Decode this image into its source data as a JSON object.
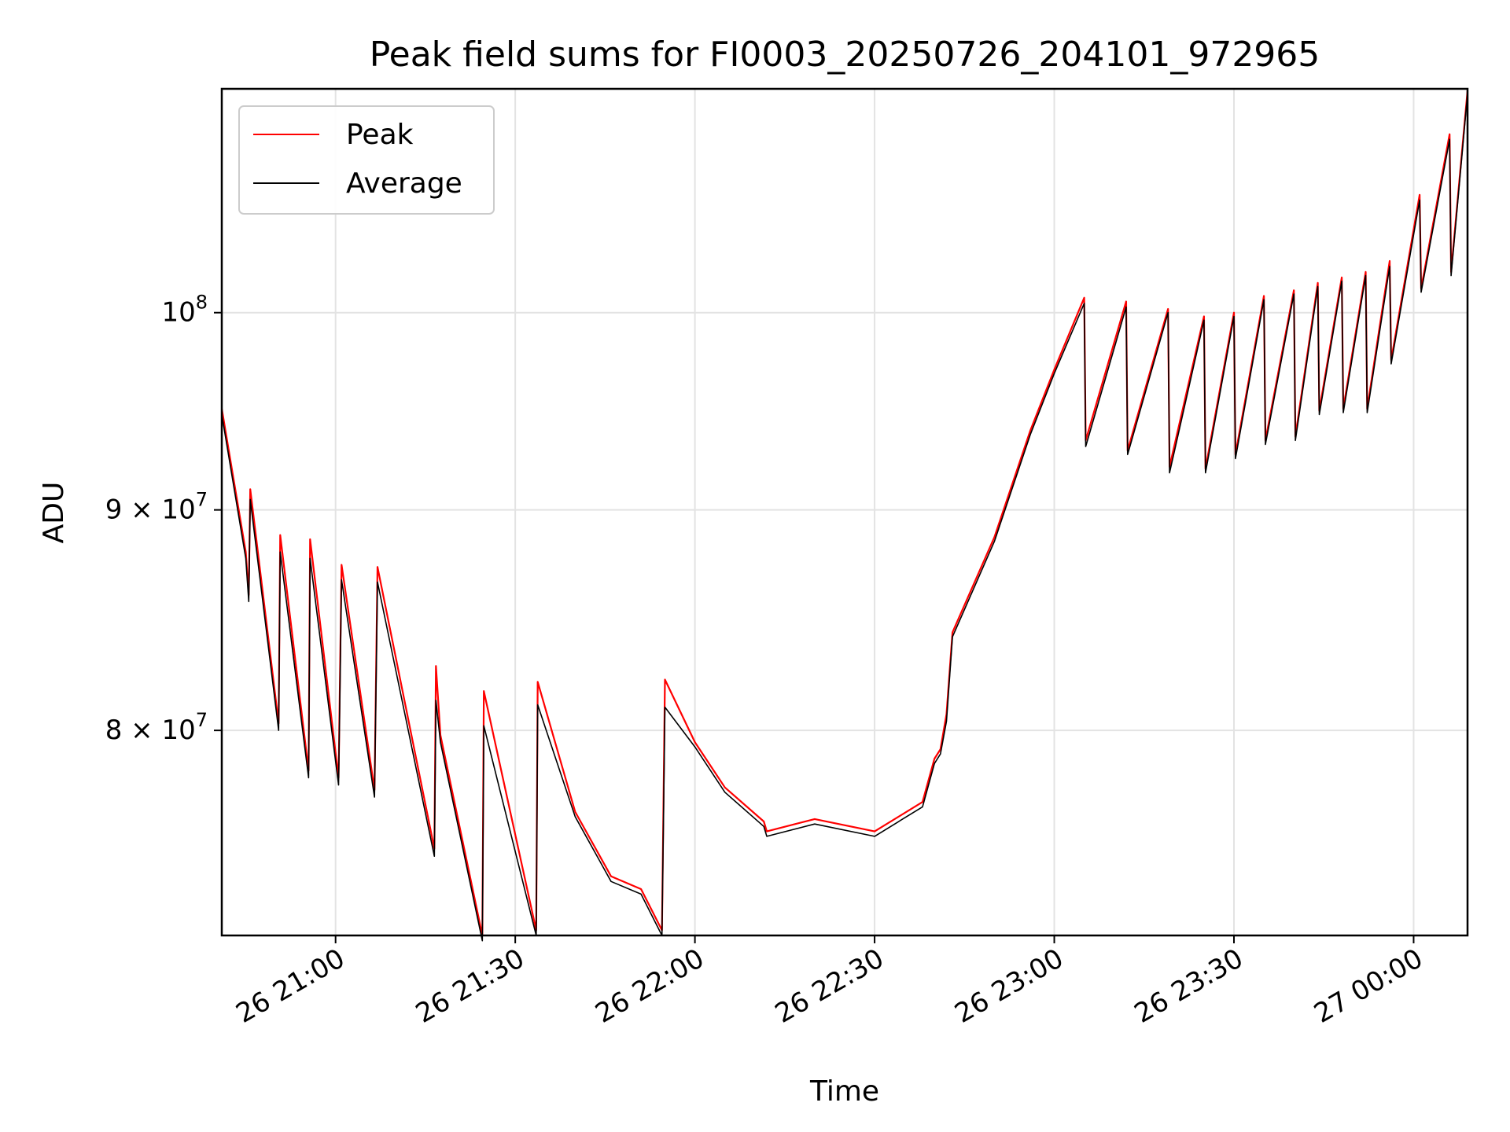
{
  "chart_data": {
    "type": "line",
    "title": "Peak field sums for FI0003_20250726_204101_972965",
    "xlabel": "Time",
    "ylabel": "ADU",
    "x_tick_labels": [
      "26 21:00",
      "26 21:30",
      "26 22:00",
      "26 22:30",
      "26 23:00",
      "26 23:30",
      "27 00:00"
    ],
    "y_tick_labels": [
      {
        "value": 80000000,
        "mantissa": "8",
        "times": "×",
        "base": "10",
        "exponent": "7"
      },
      {
        "value": 90000000,
        "mantissa": "9",
        "times": "×",
        "base": "10",
        "exponent": "7"
      },
      {
        "value": 100000000,
        "mantissa": "",
        "times": "",
        "base": "10",
        "exponent": "8"
      }
    ],
    "x_scale": "time",
    "y_scale": "log",
    "xlim": [
      "2025-07-26 20:41",
      "2025-07-27 00:09"
    ],
    "ylim": [
      71700000,
      112700000
    ],
    "grid": true,
    "legend_position": "top-left",
    "series": [
      {
        "name": "Peak",
        "color": "#ff0000",
        "points": [
          [
            "2025-07-26 20:41",
            95000000
          ],
          [
            "2025-07-26 20:45",
            88000000
          ],
          [
            "2025-07-26 20:45:30",
            86000000
          ],
          [
            "2025-07-26 20:45:45",
            91000000
          ],
          [
            "2025-07-26 20:50:30",
            80300000
          ],
          [
            "2025-07-26 20:50:45",
            88800000
          ],
          [
            "2025-07-26 20:55:30",
            78300000
          ],
          [
            "2025-07-26 20:55:45",
            88600000
          ],
          [
            "2025-07-26 21:00:30",
            78000000
          ],
          [
            "2025-07-26 21:01",
            87400000
          ],
          [
            "2025-07-26 21:06:30",
            77500000
          ],
          [
            "2025-07-26 21:07",
            87300000
          ],
          [
            "2025-07-26 21:16:30",
            75100000
          ],
          [
            "2025-07-26 21:16:45",
            82800000
          ],
          [
            "2025-07-26 21:17:30",
            79800000
          ],
          [
            "2025-07-26 21:24:30",
            71700000
          ],
          [
            "2025-07-26 21:24:45",
            81700000
          ],
          [
            "2025-07-26 21:33:30",
            71900000
          ],
          [
            "2025-07-26 21:33:45",
            82100000
          ],
          [
            "2025-07-26 21:40",
            76600000
          ],
          [
            "2025-07-26 21:46",
            74000000
          ],
          [
            "2025-07-26 21:51",
            73500000
          ],
          [
            "2025-07-26 21:54:30",
            71900000
          ],
          [
            "2025-07-26 21:55",
            82200000
          ],
          [
            "2025-07-26 22:00",
            79500000
          ],
          [
            "2025-07-26 22:05",
            77600000
          ],
          [
            "2025-07-26 22:11:30",
            76200000
          ],
          [
            "2025-07-26 22:12",
            75800000
          ],
          [
            "2025-07-26 22:20",
            76300000
          ],
          [
            "2025-07-26 22:30",
            75800000
          ],
          [
            "2025-07-26 22:38",
            77000000
          ],
          [
            "2025-07-26 22:40",
            78800000
          ],
          [
            "2025-07-26 22:41",
            79200000
          ],
          [
            "2025-07-26 22:42",
            80700000
          ],
          [
            "2025-07-26 22:43",
            84300000
          ],
          [
            "2025-07-26 22:50",
            88700000
          ],
          [
            "2025-07-26 22:56",
            93900000
          ],
          [
            "2025-07-26 23:00",
            97000000
          ],
          [
            "2025-07-26 23:05",
            100800000
          ],
          [
            "2025-07-26 23:05:15",
            93400000
          ],
          [
            "2025-07-26 23:12",
            100600000
          ],
          [
            "2025-07-26 23:12:15",
            92900000
          ],
          [
            "2025-07-26 23:19",
            100200000
          ],
          [
            "2025-07-26 23:19:15",
            92100000
          ],
          [
            "2025-07-26 23:25",
            99800000
          ],
          [
            "2025-07-26 23:25:15",
            92000000
          ],
          [
            "2025-07-26 23:30",
            100000000
          ],
          [
            "2025-07-26 23:30:15",
            92700000
          ],
          [
            "2025-07-26 23:35",
            100900000
          ],
          [
            "2025-07-26 23:35:15",
            93400000
          ],
          [
            "2025-07-26 23:40",
            101200000
          ],
          [
            "2025-07-26 23:40:15",
            93600000
          ],
          [
            "2025-07-26 23:44",
            101600000
          ],
          [
            "2025-07-26 23:44:15",
            94900000
          ],
          [
            "2025-07-26 23:48",
            101900000
          ],
          [
            "2025-07-26 23:48:15",
            95000000
          ],
          [
            "2025-07-26 23:52",
            102200000
          ],
          [
            "2025-07-26 23:52:15",
            95000000
          ],
          [
            "2025-07-26 23:56",
            102800000
          ],
          [
            "2025-07-26 23:56:15",
            97500000
          ],
          [
            "2025-07-27 00:01",
            106500000
          ],
          [
            "2025-07-27 00:01:15",
            101300000
          ],
          [
            "2025-07-27 00:06",
            110000000
          ],
          [
            "2025-07-27 00:06:15",
            102200000
          ],
          [
            "2025-07-27 00:09",
            112600000
          ]
        ]
      },
      {
        "name": "Average",
        "color": "#000000",
        "points": [
          [
            "2025-07-26 20:41",
            94700000
          ],
          [
            "2025-07-26 20:45",
            87700000
          ],
          [
            "2025-07-26 20:45:30",
            85700000
          ],
          [
            "2025-07-26 20:45:45",
            90500000
          ],
          [
            "2025-07-26 20:50:30",
            80000000
          ],
          [
            "2025-07-26 20:50:45",
            88000000
          ],
          [
            "2025-07-26 20:55:30",
            78000000
          ],
          [
            "2025-07-26 20:55:45",
            87700000
          ],
          [
            "2025-07-26 21:00:30",
            77700000
          ],
          [
            "2025-07-26 21:01",
            86700000
          ],
          [
            "2025-07-26 21:06:30",
            77200000
          ],
          [
            "2025-07-26 21:07",
            86600000
          ],
          [
            "2025-07-26 21:16:30",
            74800000
          ],
          [
            "2025-07-26 21:16:45",
            81300000
          ],
          [
            "2025-07-26 21:17:30",
            79500000
          ],
          [
            "2025-07-26 21:24:30",
            71500000
          ],
          [
            "2025-07-26 21:24:45",
            80200000
          ],
          [
            "2025-07-26 21:33:30",
            71700000
          ],
          [
            "2025-07-26 21:33:45",
            81100000
          ],
          [
            "2025-07-26 21:40",
            76400000
          ],
          [
            "2025-07-26 21:46",
            73800000
          ],
          [
            "2025-07-26 21:51",
            73300000
          ],
          [
            "2025-07-26 21:54:30",
            71700000
          ],
          [
            "2025-07-26 21:55",
            81000000
          ],
          [
            "2025-07-26 22:00",
            79300000
          ],
          [
            "2025-07-26 22:05",
            77400000
          ],
          [
            "2025-07-26 22:11:30",
            76000000
          ],
          [
            "2025-07-26 22:12",
            75600000
          ],
          [
            "2025-07-26 22:20",
            76100000
          ],
          [
            "2025-07-26 22:30",
            75600000
          ],
          [
            "2025-07-26 22:38",
            76800000
          ],
          [
            "2025-07-26 22:40",
            78600000
          ],
          [
            "2025-07-26 22:41",
            79000000
          ],
          [
            "2025-07-26 22:42",
            80400000
          ],
          [
            "2025-07-26 22:43",
            84100000
          ],
          [
            "2025-07-26 22:50",
            88500000
          ],
          [
            "2025-07-26 22:56",
            93700000
          ],
          [
            "2025-07-26 23:00",
            96800000
          ],
          [
            "2025-07-26 23:05",
            100500000
          ],
          [
            "2025-07-26 23:05:15",
            93100000
          ],
          [
            "2025-07-26 23:12",
            100300000
          ],
          [
            "2025-07-26 23:12:15",
            92700000
          ],
          [
            "2025-07-26 23:19",
            100000000
          ],
          [
            "2025-07-26 23:19:15",
            91800000
          ],
          [
            "2025-07-26 23:25",
            99600000
          ],
          [
            "2025-07-26 23:25:15",
            91800000
          ],
          [
            "2025-07-26 23:30",
            99800000
          ],
          [
            "2025-07-26 23:30:15",
            92500000
          ],
          [
            "2025-07-26 23:35",
            100700000
          ],
          [
            "2025-07-26 23:35:15",
            93200000
          ],
          [
            "2025-07-26 23:40",
            101000000
          ],
          [
            "2025-07-26 23:40:15",
            93400000
          ],
          [
            "2025-07-26 23:44",
            101400000
          ],
          [
            "2025-07-26 23:44:15",
            94700000
          ],
          [
            "2025-07-26 23:48",
            101700000
          ],
          [
            "2025-07-26 23:48:15",
            94800000
          ],
          [
            "2025-07-26 23:52",
            102000000
          ],
          [
            "2025-07-26 23:52:15",
            94800000
          ],
          [
            "2025-07-26 23:56",
            102500000
          ],
          [
            "2025-07-26 23:56:15",
            97300000
          ],
          [
            "2025-07-27 00:01",
            106200000
          ],
          [
            "2025-07-27 00:01:15",
            101100000
          ],
          [
            "2025-07-27 00:06",
            109700000
          ],
          [
            "2025-07-27 00:06:15",
            102000000
          ],
          [
            "2025-07-27 00:09",
            112400000
          ]
        ]
      }
    ]
  }
}
